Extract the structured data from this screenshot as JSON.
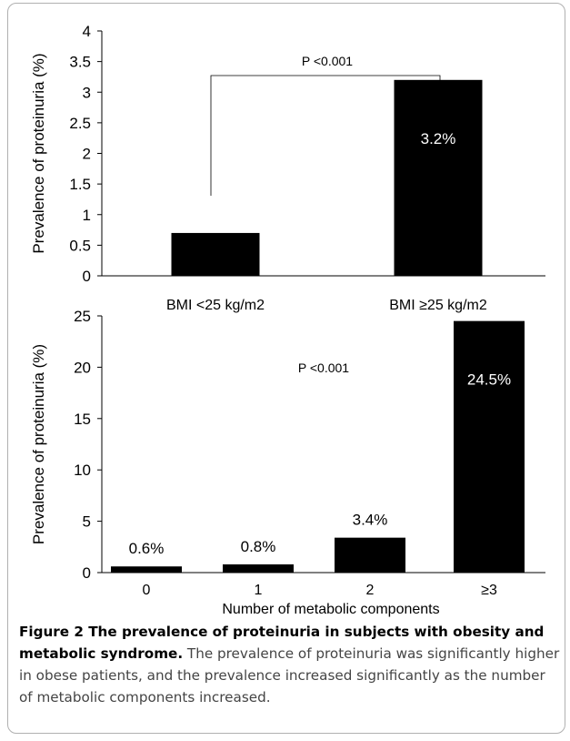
{
  "chart_data": [
    {
      "type": "bar",
      "categories": [
        "BMI <25 kg/m2",
        "BMI ≥25 kg/m2"
      ],
      "values": [
        0.7,
        3.2
      ],
      "data_labels": [
        "",
        "3.2%"
      ],
      "ylabel": "Prevalence of proteinuria (%)",
      "xlabel": "",
      "ylim": [
        0,
        4
      ],
      "yticks": [
        "0",
        "0.5",
        "1",
        "1.5",
        "2",
        "2.5",
        "3",
        "3.5",
        "4"
      ],
      "annotation": "P <0.001",
      "bar_color": "#000000",
      "grid": false
    },
    {
      "type": "bar",
      "categories": [
        "0",
        "1",
        "2",
        "≥3"
      ],
      "values": [
        0.6,
        0.8,
        3.4,
        24.5
      ],
      "data_labels": [
        "0.6%",
        "0.8%",
        "3.4%",
        "24.5%"
      ],
      "ylabel": "Prevalence of proteinuria (%)",
      "xlabel": "Number of metabolic components",
      "ylim": [
        0,
        25
      ],
      "yticks": [
        "0",
        "5",
        "10",
        "15",
        "20",
        "25"
      ],
      "annotation": "P <0.001",
      "bar_color": "#000000",
      "grid": false
    }
  ],
  "caption": {
    "title": "Figure 2 The prevalence of proteinuria in subjects with obesity and metabolic syndrome.",
    "text": "The prevalence of proteinuria was significantly higher in obese patients, and the prevalence increased significantly as the number of metabolic components increased."
  }
}
